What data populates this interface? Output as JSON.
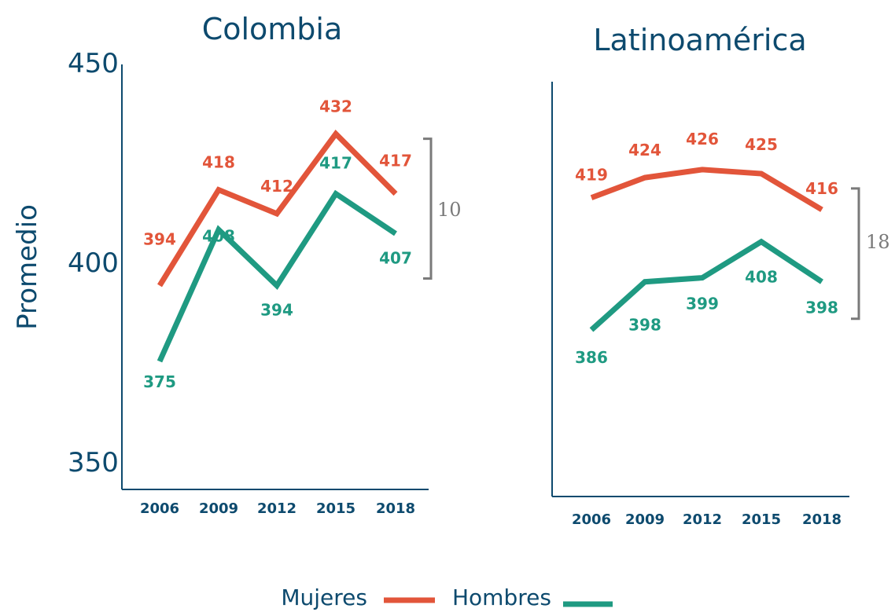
{
  "colors": {
    "axis": "#0d4a6e",
    "mujeres": "#e2553a",
    "hombres": "#1f9a82",
    "gap": "#7a7a7a"
  },
  "y_axis": {
    "label": "Promedio",
    "ticks": [
      "450",
      "400",
      "350"
    ]
  },
  "legend": {
    "mujeres": "Mujeres",
    "hombres": "Hombres"
  },
  "chart_data": [
    {
      "type": "line",
      "title": "Colombia",
      "categories": [
        "2006",
        "2009",
        "2012",
        "2015",
        "2018"
      ],
      "ylim": [
        350,
        450
      ],
      "series": [
        {
          "name": "Mujeres",
          "key": "mujeres",
          "values": [
            394,
            418,
            412,
            432,
            417
          ]
        },
        {
          "name": "Hombres",
          "key": "hombres",
          "values": [
            375,
            408,
            394,
            417,
            407
          ]
        }
      ],
      "gap_label": "10"
    },
    {
      "type": "line",
      "title": "Latinoamérica",
      "categories": [
        "2006",
        "2009",
        "2012",
        "2015",
        "2018"
      ],
      "ylim": [
        350,
        450
      ],
      "series": [
        {
          "name": "Mujeres",
          "key": "mujeres",
          "values": [
            419,
            424,
            426,
            425,
            416
          ]
        },
        {
          "name": "Hombres",
          "key": "hombres",
          "values": [
            386,
            398,
            399,
            408,
            398
          ]
        }
      ],
      "gap_label": "18"
    }
  ]
}
